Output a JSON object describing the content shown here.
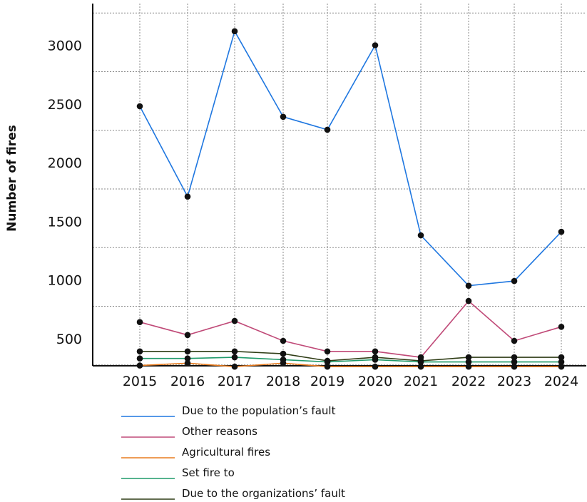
{
  "chart_data": {
    "type": "line",
    "title": "",
    "xlabel": "",
    "ylabel": "Number of fires",
    "categories": [
      "2015",
      "2016",
      "2017",
      "2018",
      "2019",
      "2020",
      "2021",
      "2022",
      "2023",
      "2024"
    ],
    "yticks": [
      500,
      1000,
      1500,
      2000,
      2500,
      3000
    ],
    "ylim": [
      250,
      3550
    ],
    "grid": true,
    "legend_position": "bottom",
    "series": [
      {
        "name": "Due to the population’s fault",
        "color": "#1f77e0",
        "values": [
          2480,
          1710,
          3120,
          2390,
          2280,
          3000,
          1380,
          950,
          990,
          1410
        ]
      },
      {
        "name": "Other reasons",
        "color": "#c04a78",
        "values": [
          640,
          530,
          650,
          480,
          390,
          390,
          340,
          820,
          480,
          600
        ]
      },
      {
        "name": "Agricultural fires",
        "color": "#e87b1e",
        "values": [
          270,
          290,
          260,
          290,
          260,
          260,
          260,
          260,
          260,
          260
        ]
      },
      {
        "name": "Set fire to",
        "color": "#1f9a6a",
        "values": [
          330,
          330,
          340,
          320,
          300,
          320,
          300,
          300,
          300,
          300
        ]
      },
      {
        "name": "Due to the organizations’ fault",
        "color": "#2f3d16",
        "values": [
          390,
          390,
          390,
          370,
          310,
          340,
          310,
          340,
          340,
          340
        ]
      }
    ]
  }
}
